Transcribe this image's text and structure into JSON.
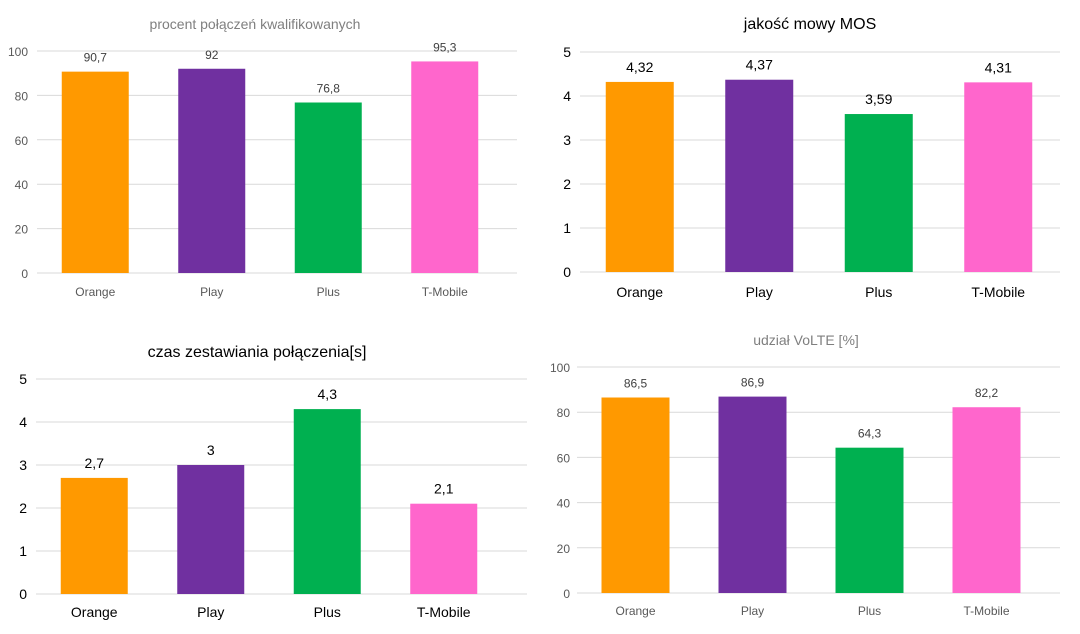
{
  "chart_data": [
    {
      "type": "bar",
      "title": "procent połączeń kwalifikowanych",
      "categories": [
        "Orange",
        "Play",
        "Plus",
        "T-Mobile"
      ],
      "values": [
        90.7,
        92,
        76.8,
        95.3
      ],
      "value_labels": [
        "90,7",
        "92",
        "76,8",
        "95,3"
      ],
      "ylim": [
        0,
        100
      ],
      "yticks": [
        0,
        20,
        40,
        60,
        80,
        100
      ],
      "style": "light",
      "xlabel": "",
      "ylabel": ""
    },
    {
      "type": "bar",
      "title": "jakość mowy MOS",
      "categories": [
        "Orange",
        "Play",
        "Plus",
        "T-Mobile"
      ],
      "values": [
        4.32,
        4.37,
        3.59,
        4.31
      ],
      "value_labels": [
        "4,32",
        "4,37",
        "3,59",
        "4,31"
      ],
      "ylim": [
        0,
        5
      ],
      "yticks": [
        0,
        1,
        2,
        3,
        4,
        5
      ],
      "style": "dark",
      "xlabel": "",
      "ylabel": ""
    },
    {
      "type": "bar",
      "title": "czas zestawiania połączenia[s]",
      "categories": [
        "Orange",
        "Play",
        "Plus",
        "T-Mobile"
      ],
      "values": [
        2.7,
        3,
        4.3,
        2.1
      ],
      "value_labels": [
        "2,7",
        "3",
        "4,3",
        "2,1"
      ],
      "ylim": [
        0,
        5
      ],
      "yticks": [
        0,
        1,
        2,
        3,
        4,
        5
      ],
      "style": "dark",
      "xlabel": "",
      "ylabel": ""
    },
    {
      "type": "bar",
      "title": "udział VoLTE [%]",
      "categories": [
        "Orange",
        "Play",
        "Plus",
        "T-Mobile"
      ],
      "values": [
        86.5,
        86.9,
        64.3,
        82.2
      ],
      "value_labels": [
        "86,5",
        "86,9",
        "64,3",
        "82,2"
      ],
      "ylim": [
        0,
        100
      ],
      "yticks": [
        0,
        20,
        40,
        60,
        80,
        100
      ],
      "style": "light",
      "xlabel": "",
      "ylabel": ""
    }
  ],
  "colors": {
    "Orange": "#ff9900",
    "Play": "#7030a0",
    "Plus": "#00b050",
    "T-Mobile": "#ff66cc"
  }
}
